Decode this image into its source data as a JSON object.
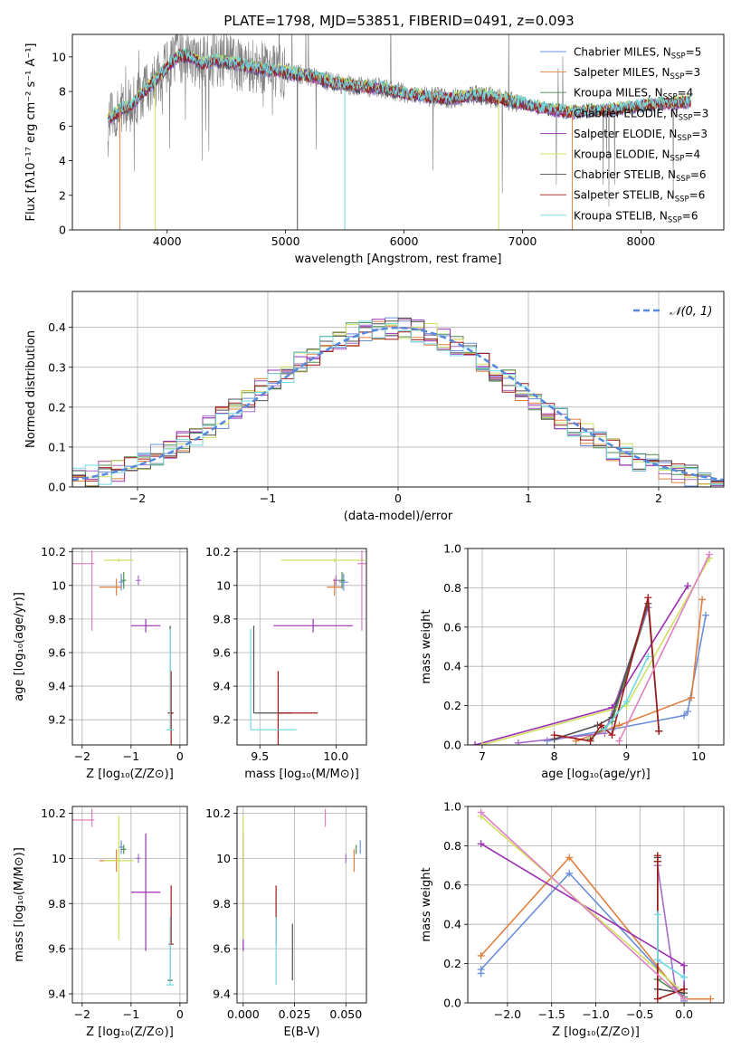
{
  "title": "PLATE=1798, MJD=53851, FIBERID=0491, z=0.093",
  "colors": {
    "Chabrier MILES": "#6a8fd8",
    "Salpeter MILES": "#e08040",
    "Kroupa MILES": "#4f8f4f",
    "Chabrier ELODIE": "#a86cc8",
    "Salpeter ELODIE": "#9a30b0",
    "Kroupa ELODIE": "#d0e060",
    "Chabrier STELIB": "#505050",
    "Salpeter STELIB": "#a01818",
    "Kroupa STELIB": "#70d8e0",
    "pinkline": "#e080c0",
    "normal_curve": "#5588dd",
    "data_spectrum": "#808080"
  },
  "chart_data": [
    {
      "id": "spectrum",
      "type": "line",
      "title": "PLATE=1798, MJD=53851, FIBERID=0491, z=0.093",
      "xlabel": "wavelength [Angstrom, rest frame]",
      "ylabel": "Flux [fλ10⁻¹⁷ erg cm⁻² s⁻¹ A⁻¹]",
      "xlim": [
        3200,
        8700
      ],
      "ylim": [
        0,
        11.3
      ],
      "xticks": [
        4000,
        5000,
        6000,
        7000,
        8000
      ],
      "yticks": [
        0,
        2,
        4,
        6,
        8,
        10
      ],
      "legend_position": "top-right",
      "legend": [
        {
          "name": "Chabrier MILES",
          "sub": "5"
        },
        {
          "name": "Salpeter MILES",
          "sub": "3"
        },
        {
          "name": "Kroupa MILES",
          "sub": "4"
        },
        {
          "name": "Chabrier ELODIE",
          "sub": "3"
        },
        {
          "name": "Salpeter ELODIE",
          "sub": "3"
        },
        {
          "name": "Kroupa ELODIE",
          "sub": "4"
        },
        {
          "name": "Chabrier STELIB",
          "sub": "6"
        },
        {
          "name": "Salpeter STELIB",
          "sub": "6"
        },
        {
          "name": "Kroupa STELIB",
          "sub": "6"
        }
      ],
      "legend_label_prefix": ", N",
      "legend_label_sub": "SSP",
      "continuum": {
        "wavelength": [
          3500,
          3600,
          3700,
          3800,
          3900,
          4000,
          4100,
          4200,
          4300,
          4400,
          4600,
          4800,
          5000,
          5200,
          5400,
          5600,
          5800,
          6000,
          6200,
          6400,
          6600,
          6800,
          7000,
          7200,
          7400,
          7600,
          7800,
          8000,
          8200,
          8400
        ],
        "flux": [
          6.4,
          6.9,
          7.2,
          8.0,
          8.6,
          9.4,
          10.1,
          10.0,
          9.6,
          9.8,
          9.6,
          9.3,
          9.1,
          8.9,
          8.5,
          8.3,
          8.2,
          7.9,
          7.7,
          7.6,
          7.8,
          7.6,
          7.3,
          7.0,
          6.8,
          6.9,
          7.0,
          7.2,
          7.3,
          7.4
        ]
      }
    },
    {
      "id": "residuals",
      "type": "line",
      "xlabel": "(data-model)/error",
      "ylabel": "Normed distribution",
      "xlim": [
        -2.5,
        2.5
      ],
      "ylim": [
        0,
        0.49
      ],
      "xticks": [
        -2,
        -1,
        0,
        1,
        2
      ],
      "yticks": [
        0.0,
        0.1,
        0.2,
        0.3,
        0.4
      ],
      "legend_position": "top-right",
      "legend": [
        "𝒩(0, 1)"
      ],
      "bin_width": 0.1
    },
    {
      "id": "age-vs-Z",
      "type": "scatter",
      "xlabel": "Z [log₁₀(Z/Z⊙)]",
      "ylabel": "age  [log₁₀(age/yr)]",
      "xlim": [
        -2.2,
        0.15
      ],
      "ylim": [
        9.05,
        10.22
      ],
      "xticks": [
        -2,
        -1,
        0
      ],
      "yticks": [
        9.2,
        9.4,
        9.6,
        9.8,
        10.0,
        10.2
      ]
    },
    {
      "id": "age-vs-mass",
      "type": "scatter",
      "xlabel": "mass [log₁₀(M/M⊙)]",
      "xlim": [
        9.35,
        10.2
      ],
      "ylim": [
        9.05,
        10.22
      ],
      "xticks": [
        9.5,
        10.0
      ],
      "yticks": [
        9.2,
        9.4,
        9.6,
        9.8,
        10.0,
        10.2
      ]
    },
    {
      "id": "weight-vs-age",
      "type": "line",
      "xlabel": "age  [log₁₀(age/yr)]",
      "ylabel": "mass weight",
      "xlim": [
        6.8,
        10.35
      ],
      "ylim": [
        0,
        1
      ],
      "xticks": [
        7,
        8,
        9,
        10
      ],
      "yticks": [
        0.0,
        0.2,
        0.4,
        0.6,
        0.8,
        1.0
      ]
    },
    {
      "id": "mass-vs-Z",
      "type": "scatter",
      "xlabel": "Z [log₁₀(Z/Z⊙)]",
      "ylabel": "mass [log₁₀(M/M⊙)]",
      "xlim": [
        -2.2,
        0.15
      ],
      "ylim": [
        9.36,
        10.23
      ],
      "xticks": [
        -2,
        -1,
        0
      ],
      "yticks": [
        9.4,
        9.6,
        9.8,
        10.0,
        10.2
      ]
    },
    {
      "id": "mass-vs-EBV",
      "type": "scatter",
      "xlabel": "E(B-V)",
      "xlim": [
        -0.003,
        0.06
      ],
      "ylim": [
        9.36,
        10.23
      ],
      "xticks": [
        0.0,
        0.025,
        0.05
      ],
      "yticks": [
        9.4,
        9.6,
        9.8,
        10.0,
        10.2
      ]
    },
    {
      "id": "weight-vs-Z",
      "type": "line",
      "xlabel": "Z [log₁₀(Z/Z⊙)]",
      "ylabel": "mass weight",
      "xlim": [
        -2.45,
        0.45
      ],
      "ylim": [
        0,
        1
      ],
      "xticks": [
        -2.0,
        -1.5,
        -1.0,
        -0.5,
        0.0
      ],
      "yticks": [
        0.0,
        0.2,
        0.4,
        0.6,
        0.8,
        1.0
      ]
    }
  ],
  "models": [
    {
      "key": "Chabrier MILES",
      "age": 10.02,
      "age_err": [
        0.05,
        0.05
      ],
      "mass": 10.05,
      "mass_err": [
        0.03,
        0.03
      ],
      "Z": -1.2,
      "Z_err": [
        0.05,
        0.05
      ],
      "ebv": 0.057,
      "wa": [
        [
          7.9,
          0.02
        ],
        [
          8.8,
          0.08
        ],
        [
          9.8,
          0.15
        ],
        [
          9.85,
          0.17
        ],
        [
          10.1,
          0.66
        ]
      ],
      "wz": [
        [
          -2.3,
          0.15
        ],
        [
          -2.3,
          0.17
        ],
        [
          -1.3,
          0.66
        ],
        [
          0.0,
          0.03
        ],
        [
          0.0,
          0.01
        ]
      ]
    },
    {
      "key": "Salpeter MILES",
      "age": 9.99,
      "age_err": [
        0.05,
        0.05
      ],
      "mass": 9.99,
      "mass_err": [
        0.05,
        0.05
      ],
      "Z": -1.3,
      "Z_err": [
        0.35,
        0.1
      ],
      "ebv": 0.054,
      "wa": [
        [
          8.3,
          0.02
        ],
        [
          8.9,
          0.1
        ],
        [
          9.9,
          0.24
        ],
        [
          10.05,
          0.74
        ]
      ],
      "wz": [
        [
          -2.3,
          0.24
        ],
        [
          -1.3,
          0.74
        ],
        [
          0.0,
          0.02
        ],
        [
          0.3,
          0.02
        ]
      ]
    },
    {
      "key": "Kroupa MILES",
      "age": 10.03,
      "age_err": [
        0.05,
        0.05
      ],
      "mass": 10.04,
      "mass_err": [
        0.02,
        0.02
      ],
      "Z": -1.15,
      "Z_err": [
        0.05,
        0.05
      ],
      "ebv": 0.055,
      "wa": [
        [
          8.5,
          0.03
        ],
        [
          8.8,
          0.12
        ],
        [
          9.3,
          0.7
        ]
      ],
      "wz": [
        [
          -0.3,
          0.7
        ],
        [
          -0.3,
          0.12
        ],
        [
          0.0,
          0.03
        ]
      ]
    },
    {
      "key": "Chabrier ELODIE",
      "age": 10.03,
      "age_err": [
        0.03,
        0.03
      ],
      "mass": 10.0,
      "mass_err": [
        0.02,
        0.02
      ],
      "Z": -0.85,
      "Z_err": [
        0.05,
        0.05
      ],
      "ebv": 0.05,
      "wa": [
        [
          7.5,
          0.01
        ],
        [
          8.7,
          0.06
        ],
        [
          9.3,
          0.7
        ]
      ],
      "wz": [
        [
          -0.3,
          0.7
        ],
        [
          -0.1,
          0.08
        ],
        [
          0.0,
          0.02
        ]
      ]
    },
    {
      "key": "Salpeter ELODIE",
      "age": 9.76,
      "age_err": [
        0.04,
        0.04
      ],
      "mass": 9.85,
      "mass_err": [
        0.26,
        0.26
      ],
      "Z": -0.7,
      "Z_err": [
        0.3,
        0.3
      ],
      "ebv": 0.0,
      "wa": [
        [
          6.9,
          0.0
        ],
        [
          8.8,
          0.19
        ],
        [
          9.85,
          0.81
        ]
      ],
      "wz": [
        [
          -2.3,
          0.81
        ],
        [
          0.0,
          0.19
        ],
        [
          0.0,
          0.0
        ]
      ]
    },
    {
      "key": "Kroupa ELODIE",
      "age": 10.15,
      "age_err": [
        0.01,
        0.01
      ],
      "mass": 9.99,
      "mass_err": [
        0.35,
        0.2
      ],
      "Z": -1.25,
      "Z_err": [
        0.3,
        0.3
      ],
      "ebv": 0.0,
      "wa": [
        [
          7.0,
          0.0
        ],
        [
          9.0,
          0.2
        ],
        [
          10.15,
          0.95
        ]
      ],
      "wz": [
        [
          -2.3,
          0.95
        ],
        [
          0.0,
          0.05
        ],
        [
          0.0,
          0.0
        ]
      ]
    },
    {
      "key": "Chabrier STELIB",
      "age": 9.24,
      "age_err": [
        0.0,
        0.52
      ],
      "mass": 9.46,
      "mass_err": [
        0.0,
        0.25
      ],
      "Z": -0.2,
      "Z_err": [
        0.05,
        0.05
      ],
      "ebv": 0.024,
      "wa": [
        [
          8.0,
          0.03
        ],
        [
          8.6,
          0.1
        ],
        [
          8.8,
          0.14
        ],
        [
          9.3,
          0.72
        ],
        [
          9.45,
          0.07
        ]
      ],
      "wz": [
        [
          -0.3,
          0.74
        ],
        [
          -0.3,
          0.72
        ],
        [
          -0.3,
          0.07
        ],
        [
          0.0,
          0.05
        ]
      ]
    },
    {
      "key": "Salpeter STELIB",
      "age": 9.24,
      "age_err": [
        0.25,
        0.25
      ],
      "mass": 9.62,
      "mass_err": [
        0.0,
        0.26
      ],
      "Z": -0.18,
      "Z_err": [
        0.05,
        0.05
      ],
      "ebv": 0.016,
      "wa": [
        [
          8.0,
          0.05
        ],
        [
          8.5,
          0.02
        ],
        [
          8.65,
          0.1
        ],
        [
          8.8,
          0.05
        ],
        [
          9.3,
          0.75
        ],
        [
          9.45,
          0.07
        ]
      ],
      "wz": [
        [
          -0.3,
          0.75
        ],
        [
          -0.3,
          0.72
        ],
        [
          -0.3,
          0.02
        ],
        [
          0.0,
          0.07
        ]
      ]
    },
    {
      "key": "Kroupa STELIB",
      "age": 9.14,
      "age_err": [
        0.0,
        0.6
      ],
      "mass": 9.44,
      "mass_err": [
        0.0,
        0.3
      ],
      "Z": -0.2,
      "Z_err": [
        0.08,
        0.08
      ],
      "ebv": 0.016,
      "wa": [
        [
          8.7,
          0.08
        ],
        [
          9.0,
          0.22
        ],
        [
          9.3,
          0.45
        ]
      ],
      "wz": [
        [
          -0.3,
          0.45
        ],
        [
          -0.3,
          0.22
        ],
        [
          0.0,
          0.13
        ]
      ]
    },
    {
      "key": "pinkline",
      "age": 10.13,
      "age_err": [
        0.4,
        0.08
      ],
      "mass": 10.17,
      "mass_err": [
        0.03,
        0.05
      ],
      "Z": -1.8,
      "Z_err": [
        0.6,
        0.05
      ],
      "ebv": 0.04,
      "wa": [
        [
          8.9,
          0.02
        ],
        [
          10.15,
          0.97
        ]
      ],
      "wz": [
        [
          -2.3,
          0.97
        ],
        [
          0.0,
          0.02
        ]
      ]
    }
  ]
}
